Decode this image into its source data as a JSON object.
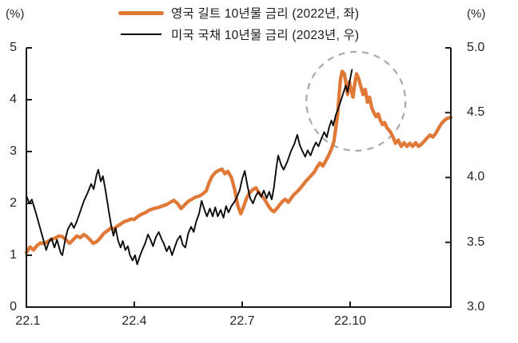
{
  "page": {
    "background": "#ffffff"
  },
  "chart_data": {
    "type": "line",
    "title": "",
    "colors": {
      "axis": "#1a1a1a",
      "text": "#262626",
      "annotation": "#A8A8A8",
      "uk_gilt": "#E07938",
      "us_treasury": "#0a0a0a"
    },
    "left_axis": {
      "unit_label": "(%)",
      "min": 0,
      "max": 5,
      "ticks": [
        "5",
        "4",
        "3",
        "2",
        "1",
        "0"
      ],
      "tick_values": [
        5,
        4,
        3,
        2,
        1,
        0
      ]
    },
    "right_axis": {
      "unit_label": "(%)",
      "min": 3.0,
      "max": 5.0,
      "ticks": [
        "5.0",
        "4.5",
        "4.0",
        "3.5",
        "3.0"
      ],
      "tick_values": [
        5.0,
        4.5,
        4.0,
        3.5,
        3.0
      ]
    },
    "x_axis": {
      "tick_labels": [
        "22.1",
        "22.4",
        "22.7",
        "22.10"
      ],
      "tick_months": [
        0,
        3,
        6,
        9
      ],
      "range_months": [
        0,
        11.8
      ]
    },
    "annotation": {
      "type": "dashed-circle",
      "center_month": 9.16,
      "center_value_left": 3.97,
      "radius_px": 62,
      "color": "#A8A8A8"
    },
    "series": [
      {
        "id": "uk-gilt-series-line",
        "name": "영국 길트 10년물 금리 (2022년, 좌)",
        "year": "2022",
        "axis": "left",
        "color": "#E07938",
        "stroke_width": 4.3,
        "points": [
          [
            0,
            1.05
          ],
          [
            0.1,
            1.16
          ],
          [
            0.2,
            1.1
          ],
          [
            0.3,
            1.19
          ],
          [
            0.4,
            1.24
          ],
          [
            0.5,
            1.22
          ],
          [
            0.6,
            1.27
          ],
          [
            0.7,
            1.31
          ],
          [
            0.8,
            1.33
          ],
          [
            0.9,
            1.37
          ],
          [
            1.0,
            1.36
          ],
          [
            1.1,
            1.3
          ],
          [
            1.2,
            1.23
          ],
          [
            1.3,
            1.3
          ],
          [
            1.4,
            1.37
          ],
          [
            1.5,
            1.34
          ],
          [
            1.6,
            1.4
          ],
          [
            1.7,
            1.35
          ],
          [
            1.78,
            1.29
          ],
          [
            1.86,
            1.23
          ],
          [
            1.95,
            1.26
          ],
          [
            2.05,
            1.33
          ],
          [
            2.15,
            1.42
          ],
          [
            2.25,
            1.47
          ],
          [
            2.35,
            1.53
          ],
          [
            2.43,
            1.5
          ],
          [
            2.52,
            1.56
          ],
          [
            2.62,
            1.6
          ],
          [
            2.72,
            1.65
          ],
          [
            2.82,
            1.67
          ],
          [
            2.92,
            1.7
          ],
          [
            3.0,
            1.69
          ],
          [
            3.1,
            1.75
          ],
          [
            3.2,
            1.79
          ],
          [
            3.3,
            1.82
          ],
          [
            3.42,
            1.87
          ],
          [
            3.54,
            1.9
          ],
          [
            3.66,
            1.92
          ],
          [
            3.78,
            1.95
          ],
          [
            3.9,
            1.98
          ],
          [
            4.0,
            2.02
          ],
          [
            4.1,
            2.06
          ],
          [
            4.2,
            2.0
          ],
          [
            4.3,
            1.9
          ],
          [
            4.4,
            1.97
          ],
          [
            4.5,
            2.04
          ],
          [
            4.6,
            2.08
          ],
          [
            4.7,
            2.12
          ],
          [
            4.8,
            2.14
          ],
          [
            4.9,
            2.18
          ],
          [
            5.0,
            2.24
          ],
          [
            5.08,
            2.4
          ],
          [
            5.16,
            2.52
          ],
          [
            5.26,
            2.6
          ],
          [
            5.36,
            2.64
          ],
          [
            5.44,
            2.66
          ],
          [
            5.52,
            2.57
          ],
          [
            5.6,
            2.62
          ],
          [
            5.7,
            2.5
          ],
          [
            5.8,
            2.24
          ],
          [
            5.88,
            1.95
          ],
          [
            5.96,
            1.8
          ],
          [
            6.04,
            1.94
          ],
          [
            6.12,
            2.1
          ],
          [
            6.2,
            2.2
          ],
          [
            6.3,
            2.27
          ],
          [
            6.38,
            2.3
          ],
          [
            6.46,
            2.21
          ],
          [
            6.54,
            2.15
          ],
          [
            6.62,
            2.08
          ],
          [
            6.72,
            1.96
          ],
          [
            6.8,
            1.88
          ],
          [
            6.88,
            1.84
          ],
          [
            6.96,
            1.9
          ],
          [
            7.04,
            1.97
          ],
          [
            7.12,
            2.04
          ],
          [
            7.2,
            2.08
          ],
          [
            7.28,
            2.02
          ],
          [
            7.36,
            2.1
          ],
          [
            7.44,
            2.17
          ],
          [
            7.52,
            2.22
          ],
          [
            7.6,
            2.28
          ],
          [
            7.68,
            2.35
          ],
          [
            7.76,
            2.42
          ],
          [
            7.84,
            2.48
          ],
          [
            7.92,
            2.54
          ],
          [
            8.0,
            2.6
          ],
          [
            8.08,
            2.7
          ],
          [
            8.16,
            2.78
          ],
          [
            8.24,
            2.72
          ],
          [
            8.32,
            2.82
          ],
          [
            8.4,
            2.92
          ],
          [
            8.48,
            3.05
          ],
          [
            8.55,
            3.2
          ],
          [
            8.6,
            3.45
          ],
          [
            8.65,
            3.7
          ],
          [
            8.69,
            4.05
          ],
          [
            8.73,
            4.4
          ],
          [
            8.78,
            4.55
          ],
          [
            8.84,
            4.5
          ],
          [
            8.89,
            4.28
          ],
          [
            8.93,
            4.1
          ],
          [
            8.98,
            4.35
          ],
          [
            9.03,
            4.18
          ],
          [
            9.08,
            4.05
          ],
          [
            9.13,
            4.32
          ],
          [
            9.18,
            4.5
          ],
          [
            9.24,
            4.4
          ],
          [
            9.3,
            4.25
          ],
          [
            9.36,
            4.1
          ],
          [
            9.42,
            4.2
          ],
          [
            9.48,
            3.95
          ],
          [
            9.54,
            4.05
          ],
          [
            9.6,
            3.85
          ],
          [
            9.66,
            3.75
          ],
          [
            9.72,
            3.67
          ],
          [
            9.78,
            3.73
          ],
          [
            9.84,
            3.6
          ],
          [
            9.9,
            3.52
          ],
          [
            9.96,
            3.56
          ],
          [
            10.02,
            3.46
          ],
          [
            10.1,
            3.4
          ],
          [
            10.18,
            3.3
          ],
          [
            10.26,
            3.16
          ],
          [
            10.34,
            3.22
          ],
          [
            10.42,
            3.1
          ],
          [
            10.5,
            3.17
          ],
          [
            10.58,
            3.1
          ],
          [
            10.66,
            3.16
          ],
          [
            10.74,
            3.1
          ],
          [
            10.82,
            3.17
          ],
          [
            10.9,
            3.1
          ],
          [
            10.98,
            3.14
          ],
          [
            11.06,
            3.2
          ],
          [
            11.14,
            3.26
          ],
          [
            11.22,
            3.32
          ],
          [
            11.3,
            3.28
          ],
          [
            11.38,
            3.35
          ],
          [
            11.46,
            3.45
          ],
          [
            11.54,
            3.54
          ],
          [
            11.62,
            3.6
          ],
          [
            11.7,
            3.64
          ],
          [
            11.8,
            3.66
          ]
        ]
      },
      {
        "id": "us-treasury-series-line",
        "name": "미국 국채 10년물 금리 (2023년, 우)",
        "year": "2023",
        "axis": "right",
        "color": "#0a0a0a",
        "stroke_width": 1.9,
        "points": [
          [
            0,
            3.86
          ],
          [
            0.08,
            3.8
          ],
          [
            0.15,
            3.83
          ],
          [
            0.25,
            3.74
          ],
          [
            0.35,
            3.64
          ],
          [
            0.45,
            3.54
          ],
          [
            0.55,
            3.44
          ],
          [
            0.62,
            3.5
          ],
          [
            0.7,
            3.53
          ],
          [
            0.78,
            3.46
          ],
          [
            0.85,
            3.52
          ],
          [
            0.95,
            3.42
          ],
          [
            1.0,
            3.4
          ],
          [
            1.08,
            3.52
          ],
          [
            1.15,
            3.6
          ],
          [
            1.25,
            3.65
          ],
          [
            1.32,
            3.61
          ],
          [
            1.4,
            3.66
          ],
          [
            1.5,
            3.74
          ],
          [
            1.6,
            3.82
          ],
          [
            1.7,
            3.88
          ],
          [
            1.8,
            3.95
          ],
          [
            1.87,
            3.91
          ],
          [
            1.95,
            4.02
          ],
          [
            2.0,
            4.06
          ],
          [
            2.07,
            3.97
          ],
          [
            2.13,
            4.01
          ],
          [
            2.2,
            3.9
          ],
          [
            2.28,
            3.76
          ],
          [
            2.35,
            3.64
          ],
          [
            2.42,
            3.55
          ],
          [
            2.48,
            3.61
          ],
          [
            2.55,
            3.51
          ],
          [
            2.62,
            3.46
          ],
          [
            2.68,
            3.51
          ],
          [
            2.75,
            3.44
          ],
          [
            2.82,
            3.47
          ],
          [
            2.88,
            3.4
          ],
          [
            2.95,
            3.36
          ],
          [
            3.02,
            3.4
          ],
          [
            3.08,
            3.33
          ],
          [
            3.15,
            3.39
          ],
          [
            3.22,
            3.44
          ],
          [
            3.3,
            3.49
          ],
          [
            3.38,
            3.56
          ],
          [
            3.45,
            3.52
          ],
          [
            3.52,
            3.47
          ],
          [
            3.6,
            3.54
          ],
          [
            3.68,
            3.58
          ],
          [
            3.75,
            3.53
          ],
          [
            3.82,
            3.49
          ],
          [
            3.9,
            3.43
          ],
          [
            3.97,
            3.47
          ],
          [
            4.05,
            3.4
          ],
          [
            4.12,
            3.46
          ],
          [
            4.2,
            3.52
          ],
          [
            4.28,
            3.55
          ],
          [
            4.35,
            3.48
          ],
          [
            4.42,
            3.46
          ],
          [
            4.5,
            3.57
          ],
          [
            4.58,
            3.62
          ],
          [
            4.65,
            3.58
          ],
          [
            4.72,
            3.66
          ],
          [
            4.8,
            3.72
          ],
          [
            4.87,
            3.82
          ],
          [
            4.95,
            3.75
          ],
          [
            5.02,
            3.7
          ],
          [
            5.1,
            3.76
          ],
          [
            5.18,
            3.7
          ],
          [
            5.25,
            3.77
          ],
          [
            5.32,
            3.7
          ],
          [
            5.4,
            3.75
          ],
          [
            5.48,
            3.69
          ],
          [
            5.55,
            3.78
          ],
          [
            5.62,
            3.73
          ],
          [
            5.7,
            3.78
          ],
          [
            5.78,
            3.81
          ],
          [
            5.85,
            3.85
          ],
          [
            5.93,
            3.9
          ],
          [
            6.0,
            3.99
          ],
          [
            6.07,
            4.05
          ],
          [
            6.15,
            3.93
          ],
          [
            6.22,
            3.84
          ],
          [
            6.3,
            3.8
          ],
          [
            6.38,
            3.86
          ],
          [
            6.45,
            3.89
          ],
          [
            6.53,
            3.85
          ],
          [
            6.6,
            3.9
          ],
          [
            6.68,
            3.84
          ],
          [
            6.75,
            3.89
          ],
          [
            6.82,
            3.83
          ],
          [
            6.88,
            3.92
          ],
          [
            6.95,
            4.08
          ],
          [
            7.0,
            4.17
          ],
          [
            7.08,
            4.1
          ],
          [
            7.15,
            4.06
          ],
          [
            7.25,
            4.12
          ],
          [
            7.35,
            4.2
          ],
          [
            7.45,
            4.26
          ],
          [
            7.53,
            4.33
          ],
          [
            7.6,
            4.25
          ],
          [
            7.68,
            4.2
          ],
          [
            7.75,
            4.16
          ],
          [
            7.82,
            4.21
          ],
          [
            7.9,
            4.17
          ],
          [
            7.98,
            4.23
          ],
          [
            8.05,
            4.27
          ],
          [
            8.12,
            4.24
          ],
          [
            8.2,
            4.3
          ],
          [
            8.28,
            4.35
          ],
          [
            8.35,
            4.31
          ],
          [
            8.42,
            4.39
          ],
          [
            8.48,
            4.44
          ],
          [
            8.53,
            4.4
          ],
          [
            8.6,
            4.48
          ],
          [
            8.68,
            4.54
          ],
          [
            8.75,
            4.6
          ],
          [
            8.82,
            4.66
          ],
          [
            8.88,
            4.71
          ],
          [
            8.93,
            4.66
          ],
          [
            9.0,
            4.76
          ],
          [
            9.05,
            4.83
          ]
        ]
      }
    ]
  }
}
